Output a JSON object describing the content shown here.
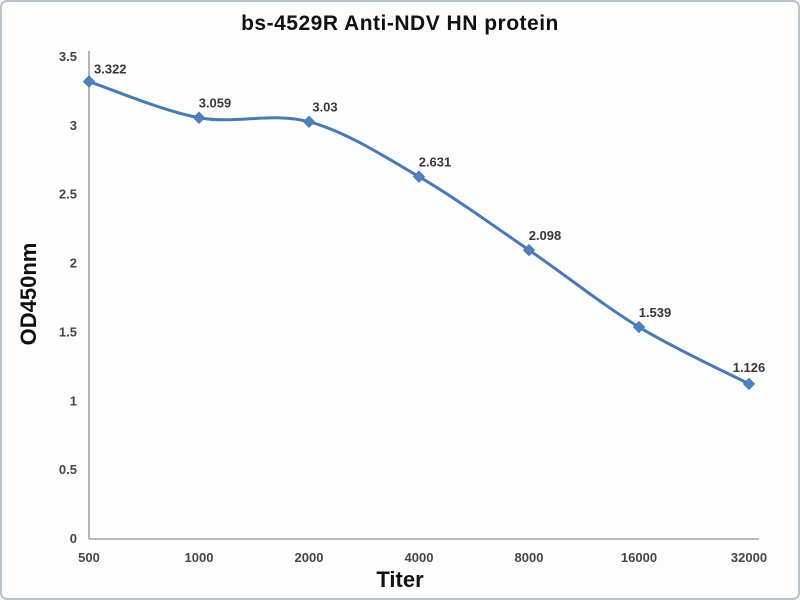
{
  "chart_data": {
    "type": "line",
    "title": "bs-4529R Anti-NDV HN protein",
    "xlabel": "Titer",
    "ylabel": "OD450nm",
    "categories": [
      "500",
      "1000",
      "2000",
      "4000",
      "8000",
      "16000",
      "32000"
    ],
    "series": [
      {
        "name": "OD450nm",
        "values": [
          3.322,
          3.059,
          3.03,
          2.631,
          2.098,
          1.539,
          1.126
        ]
      }
    ],
    "data_labels": [
      "3.322",
      "3.059",
      "3.03",
      "2.631",
      "2.098",
      "1.539",
      "1.126"
    ],
    "ylim": [
      0,
      3.5
    ],
    "ytick_labels": [
      "0",
      "0.5",
      "1",
      "1.5",
      "2",
      "2.5",
      "3",
      "3.5"
    ],
    "grid": false,
    "legend_position": "none",
    "smooth_line": true,
    "marker_shape": "diamond",
    "colors": {
      "line": "#4a7ab5",
      "marker": "#4f81bd",
      "axis": "#a3a3a3",
      "tick_label": "#454545",
      "data_label": "#383838",
      "title": "#111111",
      "frame_border": "#b9c3cc",
      "background": "#fdfdfd"
    }
  }
}
